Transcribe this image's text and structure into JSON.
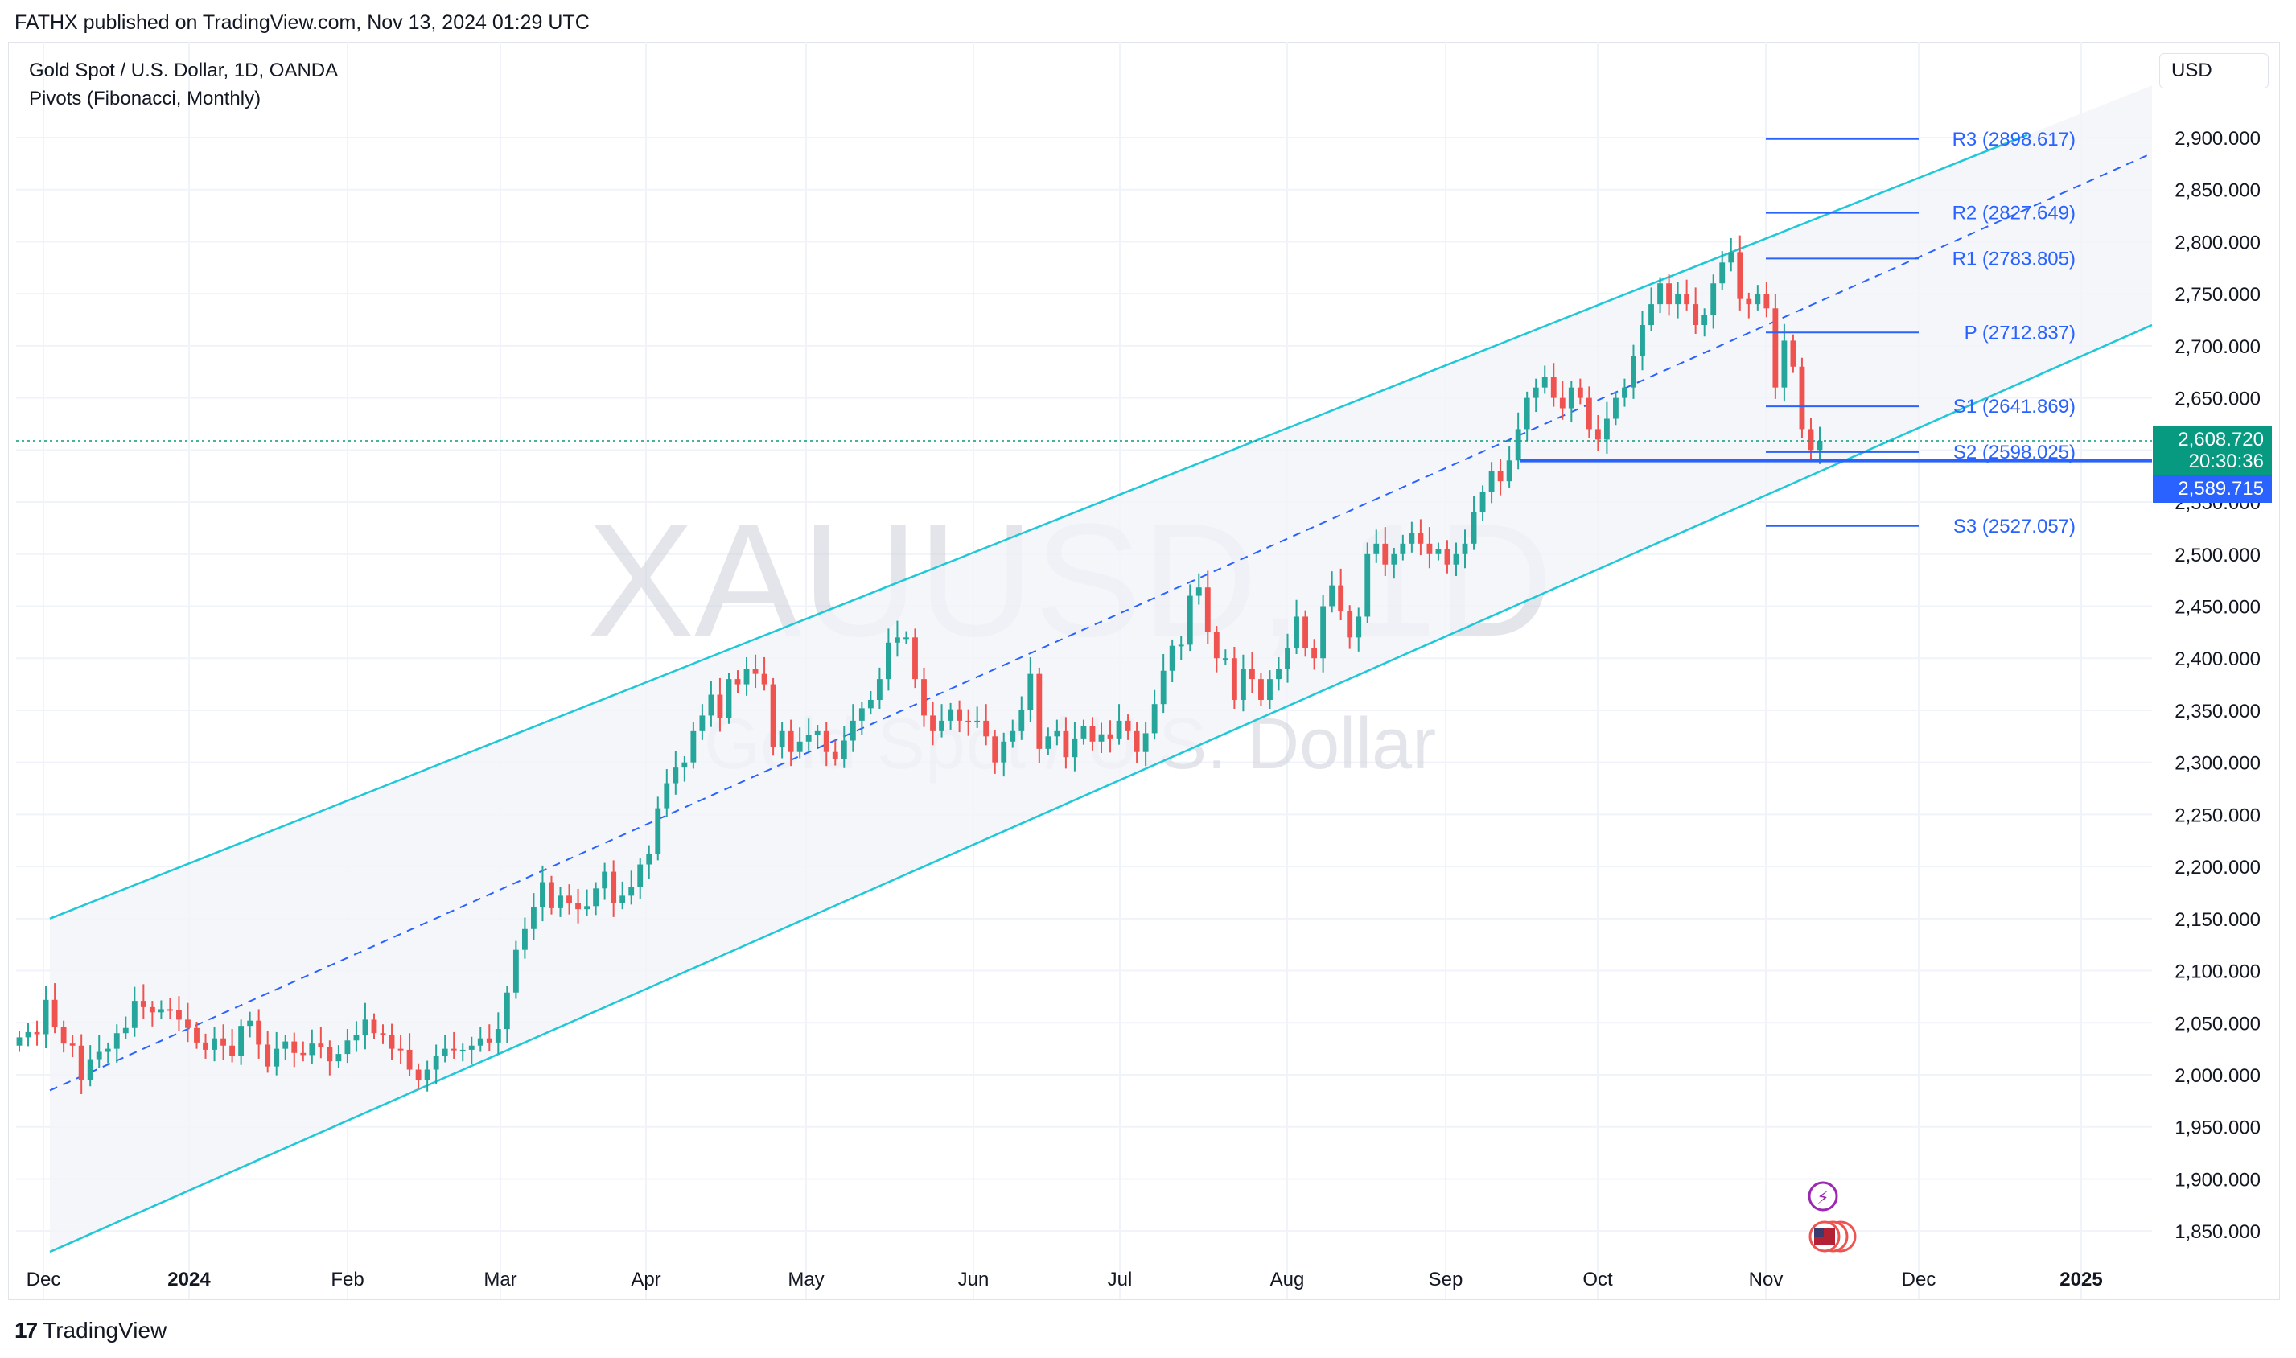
{
  "header": {
    "published_text": "FATHX published on TradingView.com, Nov 13, 2024 01:29 UTC"
  },
  "legend": {
    "symbol_line": "Gold Spot / U.S. Dollar, 1D, OANDA",
    "indicator_line": "Pivots (Fibonacci, Monthly)"
  },
  "watermark": {
    "ticker": "XAUUSD, 1D",
    "name": "Gold Spot / U.S. Dollar"
  },
  "currency_button": "USD",
  "footer": {
    "brand": "TradingView",
    "logo_mark": "17"
  },
  "colors": {
    "up": "#26a69a",
    "down": "#ef5350",
    "channel": "#1ec8d8",
    "pivot": "#2962ff",
    "axis_text": "#131722"
  },
  "icons": [
    "flash-event-icon",
    "us-flag-event-icon"
  ],
  "chart_data": {
    "type": "candlestick",
    "title": "Gold Spot / U.S. Dollar, 1D, OANDA",
    "ylim": [
      1820,
      2940
    ],
    "x_ticks": [
      "Dec",
      "2024",
      "Feb",
      "Mar",
      "Apr",
      "May",
      "Jun",
      "Jul",
      "Aug",
      "Sep",
      "Oct",
      "Nov",
      "Dec",
      "2025"
    ],
    "y_ticks": [
      "1,850.000",
      "1,900.000",
      "1,950.000",
      "2,000.000",
      "2,050.000",
      "2,100.000",
      "2,150.000",
      "2,200.000",
      "2,250.000",
      "2,300.000",
      "2,350.000",
      "2,400.000",
      "2,450.000",
      "2,500.000",
      "2,550.000",
      "2,600.000",
      "2,650.000",
      "2,700.000",
      "2,750.000",
      "2,800.000",
      "2,850.000",
      "2,900.000"
    ],
    "y_tick_values": [
      1850,
      1900,
      1950,
      2000,
      2050,
      2100,
      2150,
      2200,
      2250,
      2300,
      2350,
      2400,
      2450,
      2500,
      2550,
      2600,
      2650,
      2700,
      2750,
      2800,
      2850,
      2900
    ],
    "close_series": [
      2036,
      2041,
      2039,
      2072,
      2046,
      2030,
      2028,
      1995,
      2015,
      2022,
      2025,
      2040,
      2045,
      2071,
      2065,
      2060,
      2063,
      2062,
      2053,
      2045,
      2031,
      2024,
      2035,
      2028,
      2018,
      2047,
      2052,
      2029,
      2008,
      2025,
      2032,
      2021,
      2019,
      2030,
      2027,
      2013,
      2020,
      2033,
      2038,
      2053,
      2040,
      2038,
      2025,
      2024,
      2005,
      1995,
      2005,
      2018,
      2025,
      2024,
      2024,
      2028,
      2035,
      2031,
      2044,
      2079,
      2120,
      2140,
      2161,
      2185,
      2160,
      2172,
      2165,
      2159,
      2162,
      2179,
      2195,
      2165,
      2172,
      2180,
      2202,
      2212,
      2256,
      2280,
      2295,
      2300,
      2330,
      2345,
      2365,
      2343,
      2380,
      2375,
      2390,
      2385,
      2375,
      2315,
      2330,
      2310,
      2320,
      2326,
      2330,
      2310,
      2303,
      2321,
      2340,
      2352,
      2360,
      2380,
      2415,
      2420,
      2420,
      2380,
      2345,
      2330,
      2340,
      2351,
      2340,
      2339,
      2340,
      2325,
      2300,
      2320,
      2330,
      2350,
      2385,
      2313,
      2325,
      2330,
      2305,
      2323,
      2335,
      2320,
      2327,
      2323,
      2340,
      2330,
      2310,
      2328,
      2356,
      2388,
      2412,
      2413,
      2460,
      2468,
      2425,
      2400,
      2400,
      2360,
      2390,
      2380,
      2360,
      2380,
      2390,
      2410,
      2440,
      2410,
      2400,
      2450,
      2470,
      2445,
      2420,
      2440,
      2500,
      2510,
      2490,
      2500,
      2510,
      2520,
      2510,
      2500,
      2505,
      2490,
      2500,
      2510,
      2540,
      2560,
      2580,
      2570,
      2590,
      2620,
      2650,
      2660,
      2670,
      2650,
      2640,
      2660,
      2650,
      2620,
      2610,
      2630,
      2650,
      2660,
      2690,
      2720,
      2740,
      2760,
      2740,
      2750,
      2740,
      2720,
      2730,
      2760,
      2780,
      2790,
      2745,
      2740,
      2750,
      2736,
      2660,
      2705,
      2680,
      2620,
      2600,
      2608.72
    ],
    "x_labels_monthly": [
      "Dec",
      "2024",
      "Feb",
      "Mar",
      "Apr",
      "May",
      "Jun",
      "Jul",
      "Aug",
      "Sep",
      "Oct",
      "Nov"
    ],
    "pivots": [
      {
        "label": "R3 (2898.617)",
        "value": 2898.617
      },
      {
        "label": "R2 (2827.649)",
        "value": 2827.649
      },
      {
        "label": "R1 (2783.805)",
        "value": 2783.805
      },
      {
        "label": "P (2712.837)",
        "value": 2712.837
      },
      {
        "label": "S1 (2641.869)",
        "value": 2641.869
      },
      {
        "label": "S2 (2598.025)",
        "value": 2598.025
      },
      {
        "label": "S3 (2527.057)",
        "value": 2527.057
      }
    ],
    "horizontal_level": 2589.715,
    "last_price": {
      "value": "2,608.720",
      "countdown": "20:30:36",
      "value_num": 2608.72
    },
    "level_tag": {
      "value": "2,589.715"
    },
    "channel": {
      "upper_start": 2150,
      "upper_end": 2950,
      "lower_start": 1830,
      "lower_end": 2720,
      "mid_start": 1985,
      "mid_end": 2885
    }
  }
}
